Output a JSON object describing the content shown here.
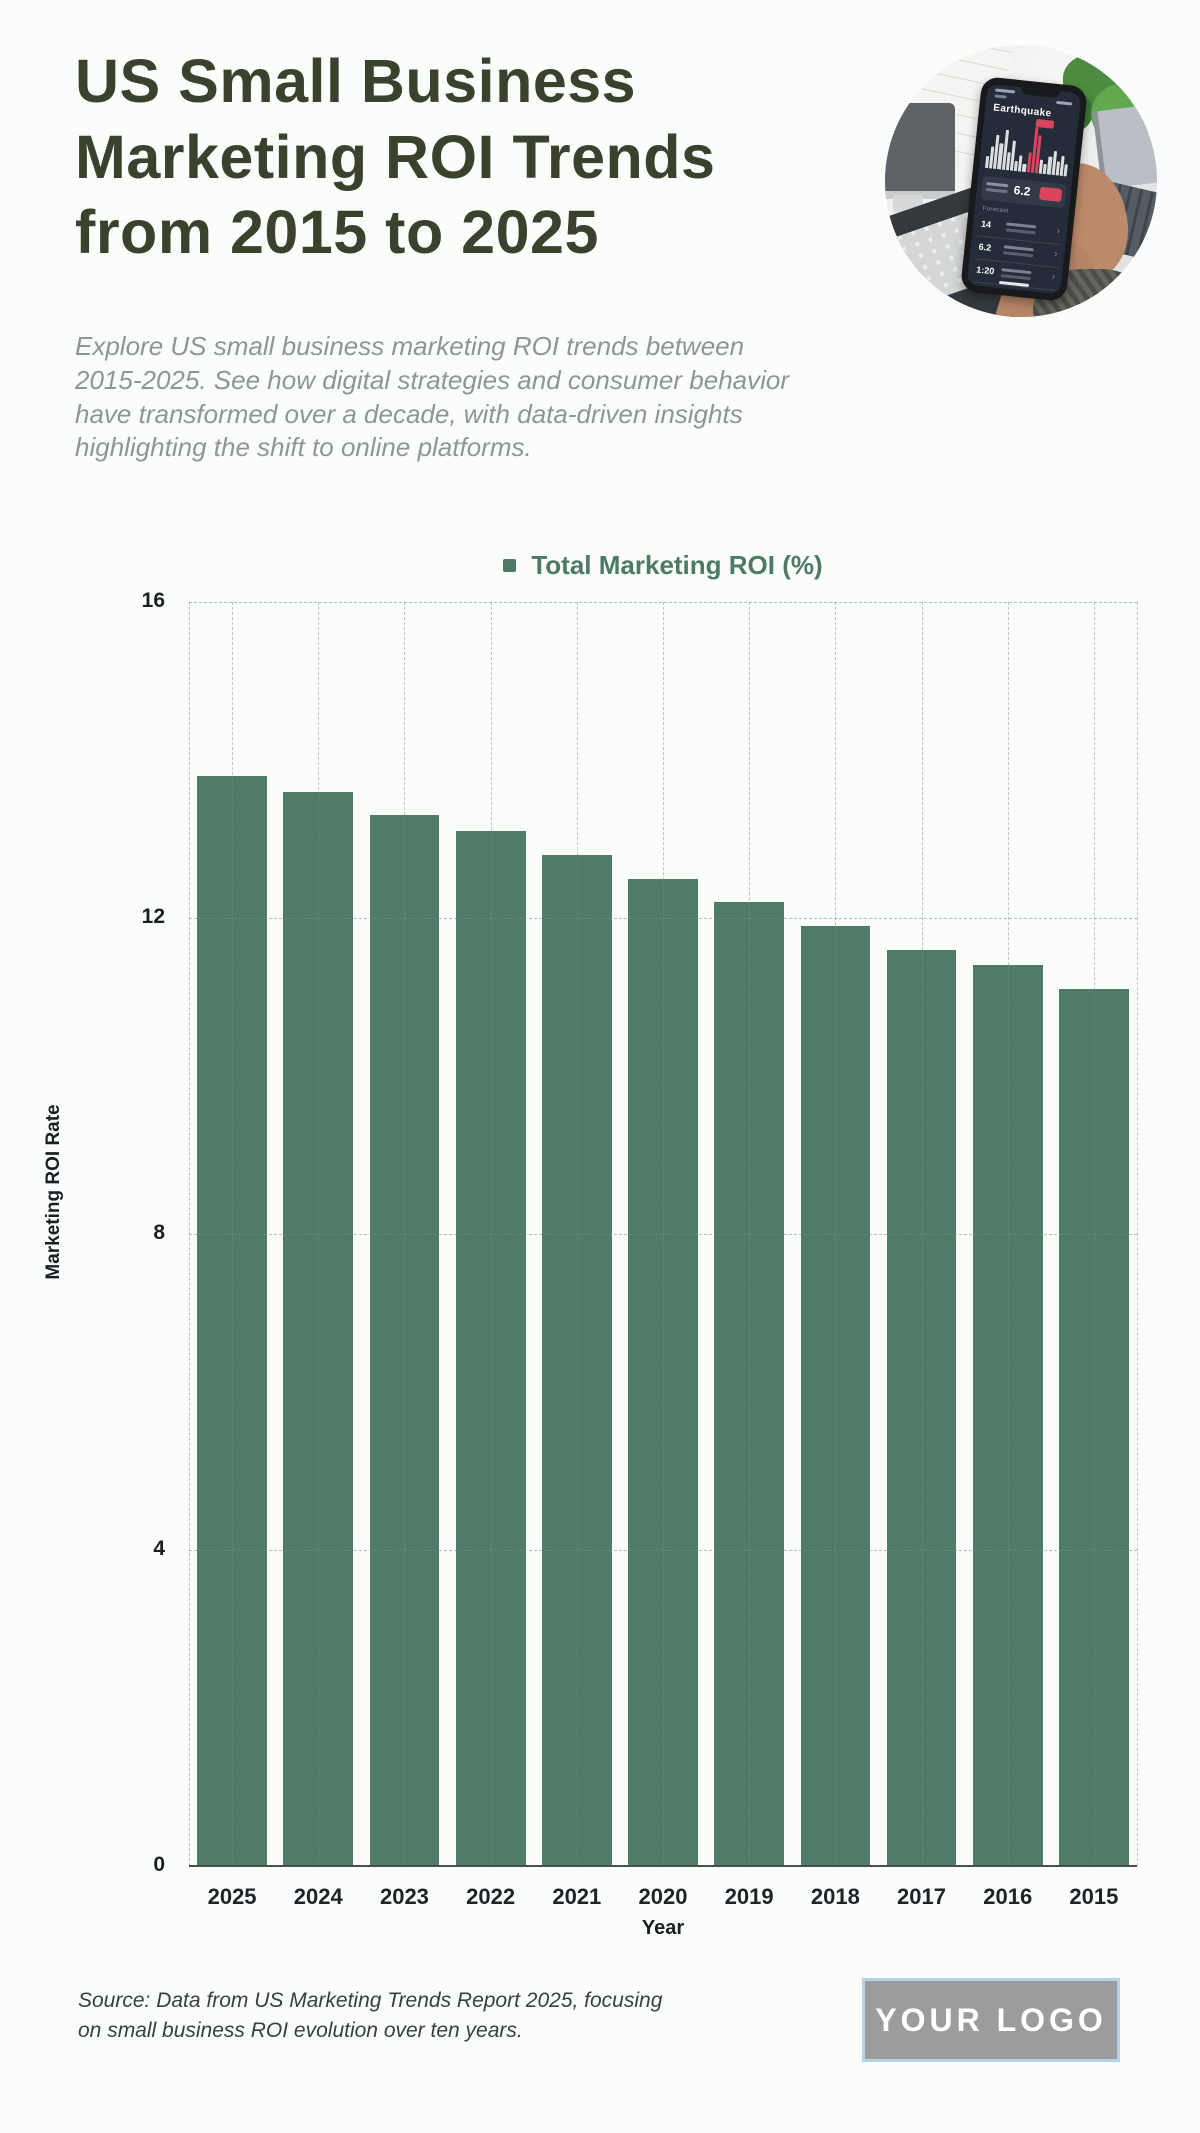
{
  "colors": {
    "background": "#fbfdfb",
    "title": "#3a422d",
    "subtitle": "#8f9692",
    "bar": "#507c67",
    "legend_text": "#4d7a63",
    "axis_text": "#1b1f23",
    "grid": "#c3c9c4",
    "source_text": "#393e44",
    "logo_bg": "#9c9c9c",
    "logo_border": "#b4d2e8",
    "logo_text_color": "#ffffff",
    "phone_accent_red": "#d8465e"
  },
  "header": {
    "title": "US Small Business\nMarketing ROI Trends\nfrom 2015 to 2025",
    "subtitle": "Explore US small business marketing ROI trends between\n2015-2025. See how digital strategies and consumer behavior\nhave transformed over a decade, with data-driven insights\nhighlighting the shift to online platforms."
  },
  "photo": {
    "description": "hand holding smartphone showing analytics app above a desk with keyboard, laptop and plant",
    "app_title": "Earthquake",
    "app_headline_value": "6.2",
    "app_section_label": "Forecast",
    "app_list_values": [
      "14",
      "6.2",
      "1:20"
    ],
    "app_chevron": "›",
    "mini_chart": {
      "heights": [
        12,
        22,
        34,
        26,
        40,
        18,
        30,
        10,
        16,
        8,
        20,
        46,
        38,
        14,
        10,
        18,
        24,
        14,
        20,
        12
      ],
      "red_indices": [
        10,
        11,
        12
      ]
    }
  },
  "chart_data": {
    "type": "bar",
    "title": "",
    "legend_label": "Total Marketing ROI (%)",
    "legend_position": "top",
    "categories": [
      "2025",
      "2024",
      "2023",
      "2022",
      "2021",
      "2020",
      "2019",
      "2018",
      "2017",
      "2016",
      "2015"
    ],
    "series": [
      {
        "name": "Total Marketing ROI (%)",
        "values": [
          13.8,
          13.6,
          13.3,
          13.1,
          12.8,
          12.5,
          12.2,
          11.9,
          11.6,
          11.4,
          11.1
        ]
      }
    ],
    "xlabel": "Year",
    "ylabel": "Marketing ROI Rate",
    "ylim": [
      0,
      16
    ],
    "yticks": [
      16,
      12,
      8,
      4,
      0
    ],
    "grid": true,
    "grid_style": "dashed",
    "bar_color": "#507c67"
  },
  "footer": {
    "source": "Source: Data from US Marketing Trends Report 2025, focusing\non small business ROI evolution over ten years.",
    "logo_text": "YOUR LOGO"
  }
}
